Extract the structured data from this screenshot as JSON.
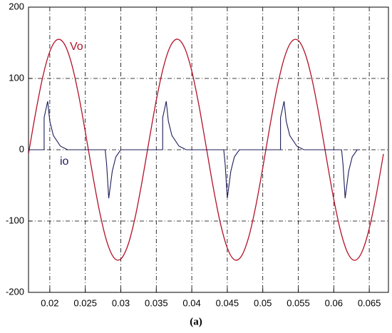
{
  "chart_data": {
    "type": "line",
    "caption": "(a)",
    "xlim": [
      0.017,
      0.0677
    ],
    "xticks": [
      0.02,
      0.025,
      0.03,
      0.035,
      0.04,
      0.045,
      0.05,
      0.055,
      0.06,
      0.065
    ],
    "ylim": [
      -200,
      200
    ],
    "yticks": [
      -200,
      -100,
      0,
      100,
      200
    ],
    "grid": true,
    "series": [
      {
        "name": "Vo",
        "color": "#b3122a",
        "x": [
          0.017,
          0.018,
          0.019,
          0.02,
          0.021,
          0.022,
          0.023,
          0.024,
          0.025,
          0.026,
          0.027,
          0.028,
          0.029,
          0.03,
          0.031,
          0.032,
          0.033,
          0.034,
          0.035,
          0.036,
          0.037,
          0.038,
          0.039,
          0.04,
          0.041,
          0.042,
          0.043,
          0.044,
          0.045,
          0.046,
          0.047,
          0.048,
          0.049,
          0.05,
          0.051,
          0.052,
          0.053,
          0.054,
          0.055,
          0.056,
          0.057,
          0.058,
          0.059,
          0.06,
          0.061,
          0.062,
          0.063,
          0.064,
          0.065,
          0.066,
          0.067
        ],
        "values": [
          -5.8,
          51.6,
          101.8,
          137.7,
          154.2,
          149.1,
          123.1,
          79.7,
          25.2,
          -32.9,
          -86.3,
          -127.7,
          -151.0,
          -153.2,
          -133.9,
          -95.8,
          -44.2,
          13.6,
          69.5,
          115.6,
          145.5,
          155.0,
          142.6,
          110.3,
          62.5,
          5.8,
          -51.6,
          -101.8,
          -137.7,
          -154.2,
          -149.1,
          -123.1,
          -79.7,
          -25.2,
          32.9,
          86.3,
          127.7,
          151.0,
          153.2,
          133.9,
          95.8,
          44.2,
          -13.6,
          -69.5,
          -115.6,
          -145.5,
          -155.0,
          -142.6,
          -110.3,
          -62.5,
          -5.8
        ]
      },
      {
        "name": "io",
        "color": "#1c1c5a",
        "x": [
          0.017,
          0.0192,
          0.0192,
          0.0197,
          0.02,
          0.0205,
          0.0215,
          0.0225,
          0.0278,
          0.028,
          0.0283,
          0.0288,
          0.0293,
          0.03,
          0.0359,
          0.0359,
          0.0364,
          0.0367,
          0.0372,
          0.0382,
          0.0392,
          0.0445,
          0.0447,
          0.045,
          0.0455,
          0.046,
          0.0467,
          0.0525,
          0.0525,
          0.053,
          0.0533,
          0.0538,
          0.0548,
          0.0558,
          0.0611,
          0.0613,
          0.0616,
          0.0621,
          0.0626,
          0.0633,
          0.0637
        ],
        "values": [
          0,
          0,
          45,
          68,
          40,
          20,
          5,
          0,
          0,
          -20,
          -68,
          -30,
          -10,
          0,
          0,
          45,
          68,
          40,
          20,
          5,
          0,
          0,
          -20,
          -68,
          -30,
          -10,
          0,
          0,
          45,
          68,
          40,
          20,
          5,
          0,
          0,
          -20,
          -68,
          -30,
          -10,
          0,
          0
        ]
      }
    ]
  }
}
